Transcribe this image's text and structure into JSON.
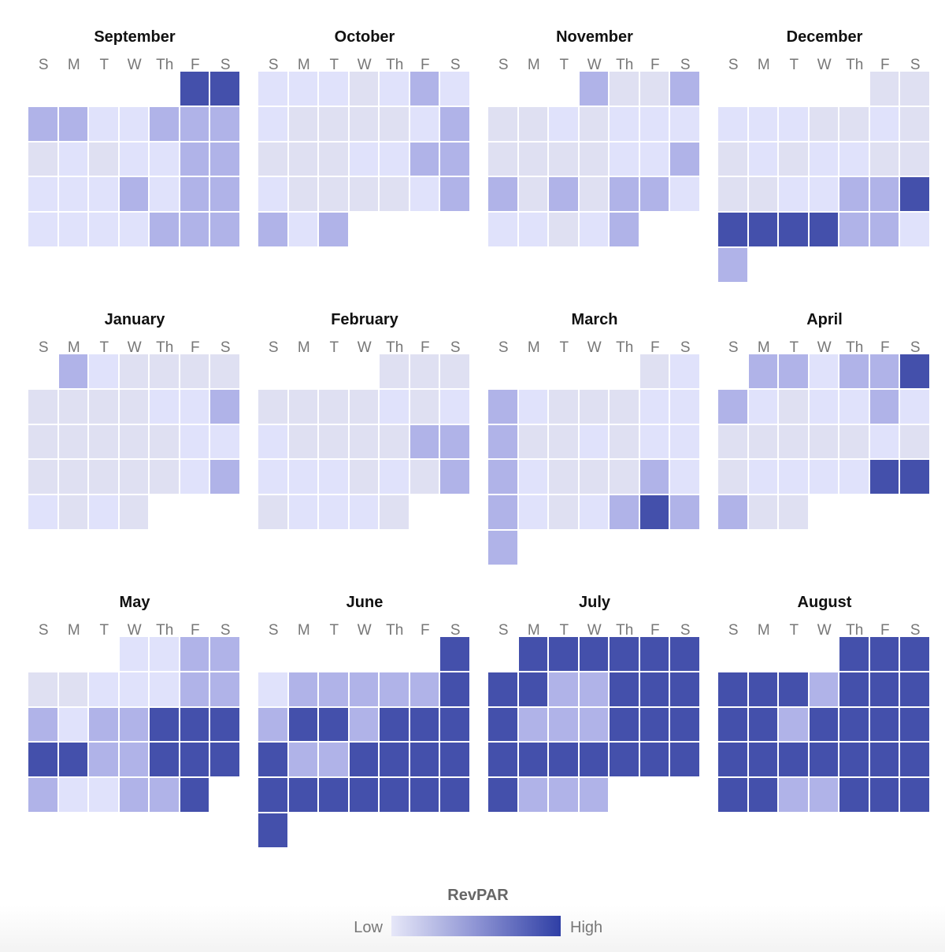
{
  "chart_data": {
    "type": "heatmap",
    "subtype": "calendar",
    "title": "",
    "weekday_labels": [
      "S",
      "M",
      "T",
      "W",
      "Th",
      "F",
      "S"
    ],
    "legend": {
      "title": "RevPAR",
      "low_label": "Low",
      "high_label": "High",
      "low_color": "#e6e7f8",
      "high_color": "#2f3fa5",
      "placement": "bottom-center"
    },
    "level_scale": {
      "description_levels": [
        1,
        2,
        3,
        4
      ],
      "colors": {
        "1": "#dfe0f2",
        "2": "#e0e2fb",
        "3": "#b0b3e8",
        "4": "#4450ab"
      }
    },
    "months": [
      {
        "name": "September",
        "first_weekday": 5,
        "days": 30,
        "levels": [
          4,
          4,
          3,
          3,
          2,
          2,
          3,
          3,
          3,
          1,
          2,
          1,
          2,
          2,
          3,
          3,
          2,
          2,
          2,
          3,
          2,
          3,
          3,
          2,
          2,
          2,
          2,
          3,
          3,
          3
        ]
      },
      {
        "name": "October",
        "first_weekday": 0,
        "days": 31,
        "levels": [
          2,
          2,
          2,
          1,
          2,
          3,
          2,
          2,
          1,
          1,
          1,
          1,
          2,
          3,
          1,
          1,
          1,
          2,
          2,
          3,
          3,
          2,
          1,
          1,
          1,
          1,
          2,
          3,
          3,
          2,
          3
        ]
      },
      {
        "name": "November",
        "first_weekday": 3,
        "days": 30,
        "levels": [
          3,
          1,
          1,
          3,
          1,
          1,
          2,
          1,
          2,
          2,
          2,
          1,
          1,
          1,
          1,
          2,
          2,
          3,
          3,
          1,
          3,
          1,
          3,
          3,
          2,
          2,
          2,
          1,
          2,
          3
        ]
      },
      {
        "name": "December",
        "first_weekday": 5,
        "days": 31,
        "levels": [
          1,
          1,
          2,
          2,
          2,
          1,
          1,
          2,
          1,
          1,
          2,
          1,
          2,
          2,
          1,
          1,
          1,
          1,
          2,
          2,
          3,
          3,
          4,
          4,
          4,
          4,
          4,
          3,
          3,
          2,
          3
        ]
      },
      {
        "name": "January",
        "first_weekday": 1,
        "days": 31,
        "levels": [
          3,
          2,
          1,
          1,
          1,
          1,
          1,
          1,
          1,
          1,
          2,
          2,
          3,
          1,
          1,
          1,
          1,
          1,
          2,
          2,
          1,
          1,
          1,
          1,
          1,
          2,
          3,
          2,
          1,
          2,
          1
        ]
      },
      {
        "name": "February",
        "first_weekday": 4,
        "days": 29,
        "levels": [
          1,
          1,
          1,
          1,
          1,
          1,
          1,
          2,
          1,
          2,
          2,
          1,
          1,
          1,
          1,
          3,
          3,
          2,
          2,
          2,
          1,
          2,
          1,
          3,
          1,
          2,
          2,
          2,
          1
        ]
      },
      {
        "name": "March",
        "first_weekday": 5,
        "days": 31,
        "levels": [
          1,
          2,
          3,
          2,
          1,
          1,
          1,
          2,
          2,
          3,
          1,
          1,
          2,
          1,
          2,
          2,
          3,
          2,
          1,
          1,
          1,
          3,
          2,
          3,
          2,
          1,
          2,
          3,
          4,
          3,
          3
        ]
      },
      {
        "name": "April",
        "first_weekday": 1,
        "days": 30,
        "levels": [
          3,
          3,
          2,
          3,
          3,
          4,
          3,
          2,
          1,
          2,
          2,
          3,
          2,
          1,
          1,
          1,
          1,
          1,
          2,
          1,
          1,
          2,
          2,
          2,
          2,
          4,
          4,
          3,
          1,
          1
        ]
      },
      {
        "name": "May",
        "first_weekday": 3,
        "days": 31,
        "levels": [
          2,
          2,
          3,
          3,
          1,
          1,
          2,
          2,
          2,
          3,
          3,
          3,
          2,
          3,
          3,
          4,
          4,
          4,
          4,
          4,
          3,
          3,
          4,
          4,
          4,
          3,
          2,
          2,
          3,
          3,
          4
        ]
      },
      {
        "name": "June",
        "first_weekday": 6,
        "days": 30,
        "levels": [
          4,
          2,
          3,
          3,
          3,
          3,
          3,
          4,
          3,
          4,
          4,
          3,
          4,
          4,
          4,
          4,
          3,
          3,
          4,
          4,
          4,
          4,
          4,
          4,
          4,
          4,
          4,
          4,
          4,
          4
        ]
      },
      {
        "name": "July",
        "first_weekday": 1,
        "days": 31,
        "levels": [
          4,
          4,
          4,
          4,
          4,
          4,
          4,
          4,
          3,
          3,
          4,
          4,
          4,
          4,
          3,
          3,
          3,
          4,
          4,
          4,
          4,
          4,
          4,
          4,
          4,
          4,
          4,
          4,
          3,
          3,
          3
        ]
      },
      {
        "name": "August",
        "first_weekday": 4,
        "days": 31,
        "levels": [
          4,
          4,
          4,
          4,
          4,
          4,
          3,
          4,
          4,
          4,
          4,
          4,
          3,
          4,
          4,
          4,
          4,
          4,
          4,
          4,
          4,
          4,
          4,
          4,
          4,
          4,
          3,
          3,
          4,
          4,
          4
        ]
      }
    ]
  }
}
